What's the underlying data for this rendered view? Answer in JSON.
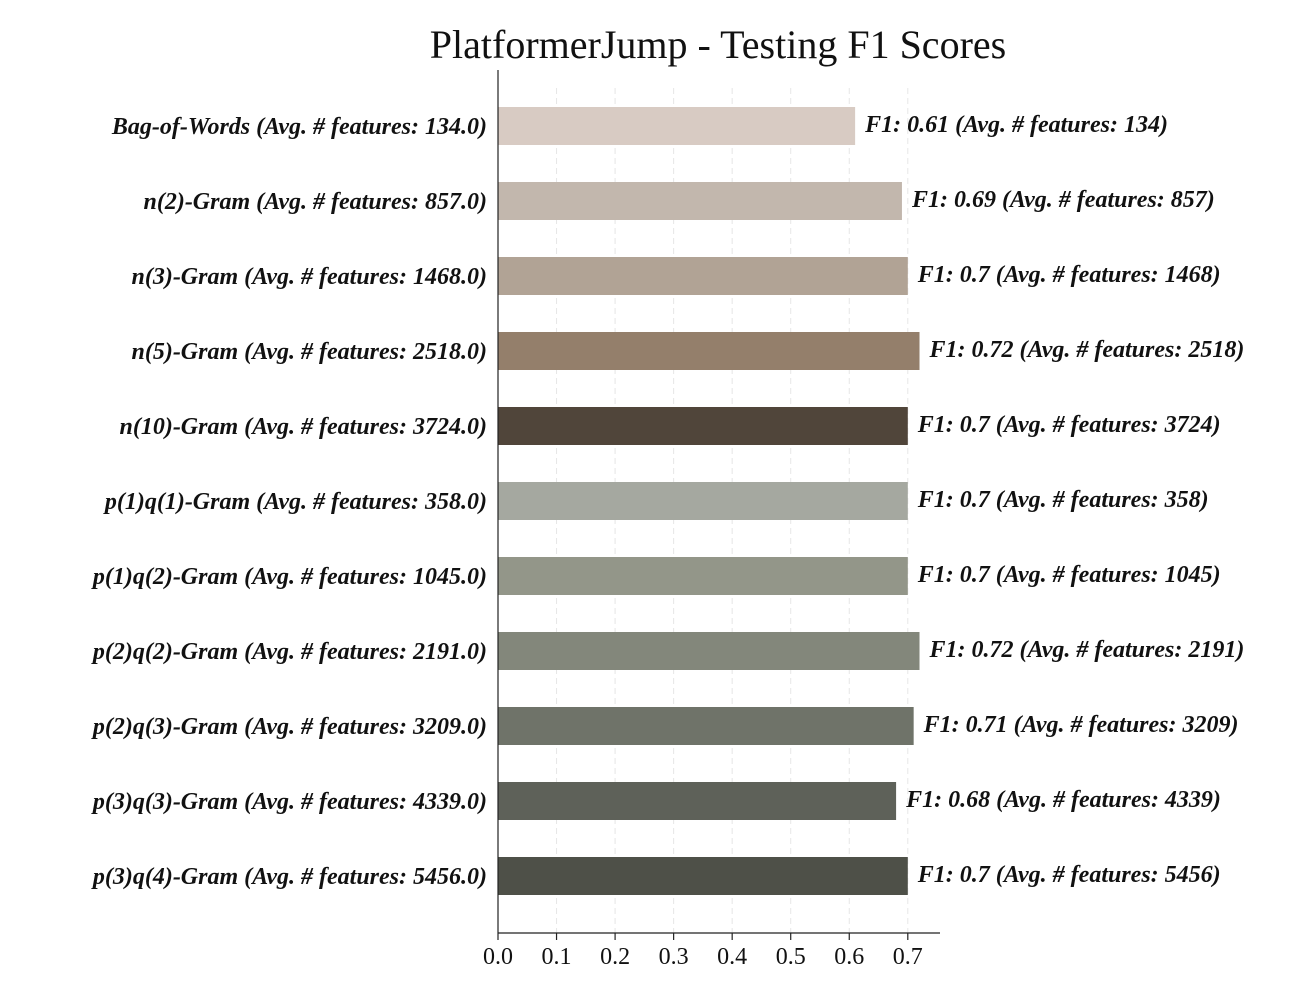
{
  "chart_data": {
    "type": "bar",
    "orientation": "horizontal",
    "title": "PlatformerJump - Testing F1 Scores",
    "xlabel": "",
    "ylabel": "",
    "xlim": [
      0,
      0.755
    ],
    "x_ticks": [
      "0.0",
      "0.1",
      "0.2",
      "0.3",
      "0.4",
      "0.5",
      "0.6",
      "0.7"
    ],
    "grid": "vertical-dashed",
    "categories": [
      "Bag-of-Words (Avg. # features: 134.0)",
      "n(2)-Gram (Avg. # features: 857.0)",
      "n(3)-Gram (Avg. # features: 1468.0)",
      "n(5)-Gram (Avg. # features: 2518.0)",
      "n(10)-Gram (Avg. # features: 3724.0)",
      "p(1)q(1)-Gram (Avg. # features: 358.0)",
      "p(1)q(2)-Gram (Avg. # features: 1045.0)",
      "p(2)q(2)-Gram (Avg. # features: 2191.0)",
      "p(2)q(3)-Gram (Avg. # features: 3209.0)",
      "p(3)q(3)-Gram (Avg. # features: 4339.0)",
      "p(3)q(4)-Gram (Avg. # features: 5456.0)"
    ],
    "values": [
      0.61,
      0.69,
      0.7,
      0.72,
      0.7,
      0.7,
      0.7,
      0.72,
      0.71,
      0.68,
      0.7
    ],
    "data_labels": [
      "F1: 0.61 (Avg. # features: 134)",
      "F1: 0.69 (Avg. # features: 857)",
      "F1: 0.7 (Avg. # features: 1468)",
      "F1: 0.72 (Avg. # features: 2518)",
      "F1: 0.7 (Avg. # features: 3724)",
      "F1: 0.7 (Avg. # features: 358)",
      "F1: 0.7 (Avg. # features: 1045)",
      "F1: 0.72 (Avg. # features: 2191)",
      "F1: 0.71 (Avg. # features: 3209)",
      "F1: 0.68 (Avg. # features: 4339)",
      "F1: 0.7 (Avg. # features: 5456)"
    ],
    "colors": [
      "#d8cbc3",
      "#c2b7ad",
      "#b1a395",
      "#947f6b",
      "#50453a",
      "#a5a8a0",
      "#939689",
      "#83877b",
      "#6f7369",
      "#5e6159",
      "#4e5048"
    ]
  }
}
